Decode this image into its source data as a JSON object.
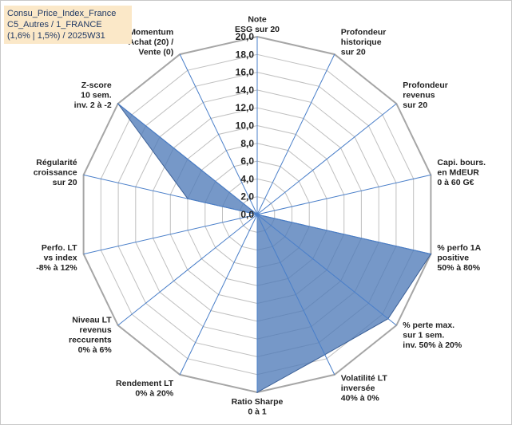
{
  "title_box": {
    "line1": "Consu_Price_Index_France",
    "line2": "C5_Autres / 1_FRANCE",
    "line3": "(1,6% | 1,5%) / 2025W31"
  },
  "chart_data": {
    "type": "radar",
    "scale": [
      0,
      20
    ],
    "ticks": [
      "0,0",
      "2,0",
      "4,0",
      "6,0",
      "8,0",
      "10,0",
      "12,0",
      "14,0",
      "16,0",
      "18,0",
      "20,0"
    ],
    "axes": [
      [
        "Note",
        "ESG sur 20"
      ],
      [
        "Profondeur",
        "historique",
        "sur 20"
      ],
      [
        "Profondeur",
        "revenus",
        "sur 20"
      ],
      [
        "Capi. bours.",
        "en MdEUR",
        "0 à 60 G€"
      ],
      [
        "% perfo 1A",
        "positive",
        "50% à 80%"
      ],
      [
        "% perte max.",
        "sur 1 sem.",
        "inv. 50% à 20%"
      ],
      [
        "Volatilité LT",
        "inversée",
        "40% à 0%"
      ],
      [
        "Ratio Sharpe",
        "0 à 1"
      ],
      [
        "Rendement LT",
        "0% à 20%"
      ],
      [
        "Niveau LT",
        "revenus",
        "reccurents",
        "0% à 6%"
      ],
      [
        "Perfo. LT",
        "vs index",
        "-8% à 12%"
      ],
      [
        "Régularité",
        "croissance",
        "sur 20"
      ],
      [
        "Z-score",
        "10 sem.",
        "inv. 2 à -2"
      ],
      [
        "Momentum",
        "Achat (20) /",
        "Vente (0)"
      ]
    ],
    "values": [
      0,
      0,
      0,
      0,
      20,
      18.8,
      17.5,
      20,
      0,
      0,
      0,
      8,
      20,
      0
    ],
    "colors": {
      "fill": "#4f7bb9",
      "stroke": "#3b5f96",
      "grid": "#bfbfbf",
      "spoke": "#4a7fc9"
    },
    "grid": true,
    "legend": "none"
  }
}
